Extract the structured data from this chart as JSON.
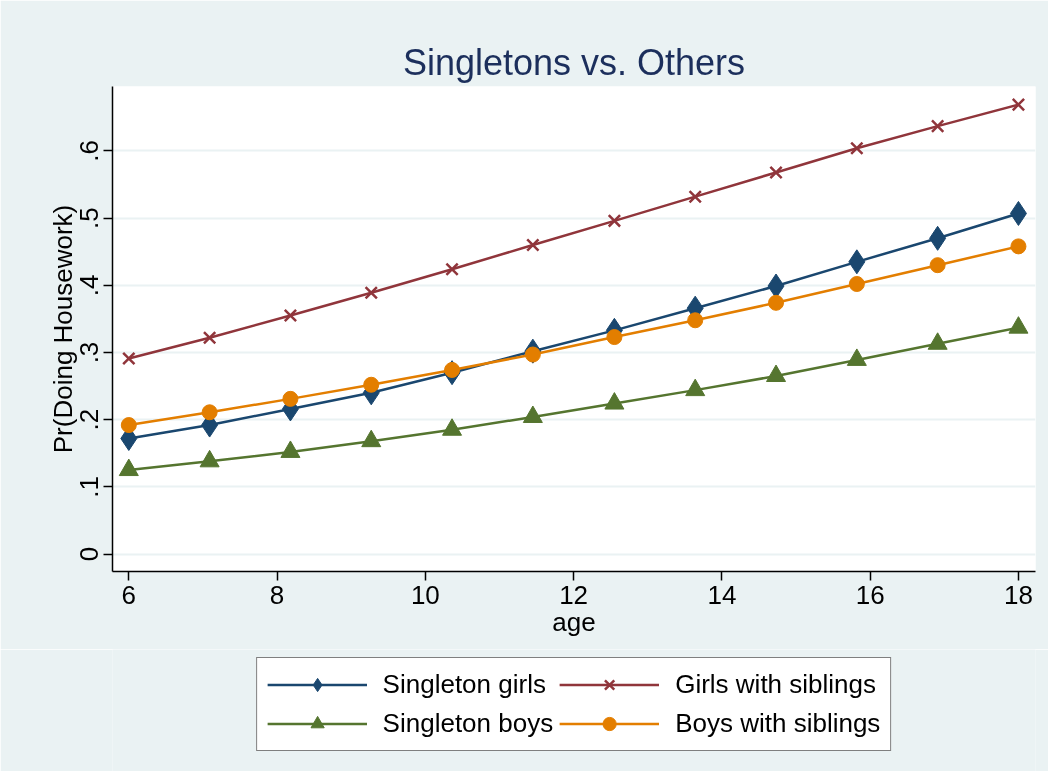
{
  "chart_data": {
    "type": "line",
    "title": "Singletons vs. Others",
    "xlabel": "age",
    "ylabel": "Pr(Doing Housework)",
    "x": [
      6,
      7.09,
      8.18,
      9.27,
      10.36,
      11.45,
      12.55,
      13.64,
      14.73,
      15.82,
      16.91,
      18
    ],
    "series": [
      {
        "name": "Singleton girls",
        "color": "#1a476f",
        "marker": "diamond",
        "values": [
          0.172,
          0.192,
          0.216,
          0.24,
          0.27,
          0.302,
          0.333,
          0.366,
          0.399,
          0.435,
          0.47,
          0.507
        ]
      },
      {
        "name": "Girls with siblings",
        "color": "#90353b",
        "marker": "cross",
        "values": [
          0.291,
          0.322,
          0.355,
          0.389,
          0.424,
          0.46,
          0.496,
          0.532,
          0.568,
          0.604,
          0.637,
          0.669
        ]
      },
      {
        "name": "Singleton boys",
        "color": "#55752f",
        "marker": "triangle",
        "values": [
          0.125,
          0.138,
          0.152,
          0.168,
          0.185,
          0.204,
          0.224,
          0.244,
          0.265,
          0.289,
          0.313,
          0.337
        ]
      },
      {
        "name": "Boys with siblings",
        "color": "#e37e00",
        "marker": "circle",
        "values": [
          0.192,
          0.211,
          0.231,
          0.252,
          0.274,
          0.297,
          0.323,
          0.348,
          0.374,
          0.402,
          0.43,
          0.458
        ]
      }
    ],
    "xlim": [
      5.78,
      18.23
    ],
    "xticks": [
      6,
      8,
      10,
      12,
      14,
      16,
      18
    ],
    "ylim": [
      -0.026,
      0.696
    ],
    "yticks": [
      0,
      {
        "value": 0.1,
        "label": ".1"
      },
      {
        "value": 0.2,
        "label": ".2"
      },
      {
        "value": 0.3,
        "label": ".3"
      },
      {
        "value": 0.4,
        "label": ".4"
      },
      {
        "value": 0.5,
        "label": ".5"
      },
      {
        "value": 0.6,
        "label": ".6"
      }
    ],
    "grid": "y",
    "legend": "bottom",
    "line_style": "solid"
  }
}
